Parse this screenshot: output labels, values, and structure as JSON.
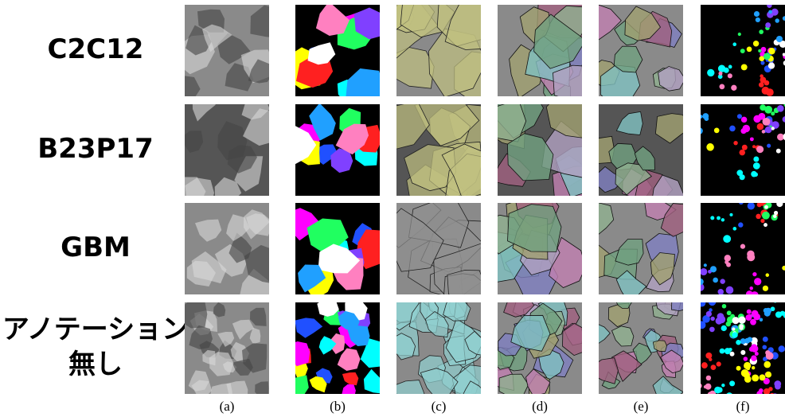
{
  "rows": [
    {
      "label": [
        "C2C12"
      ]
    },
    {
      "label": [
        "B23P17"
      ]
    },
    {
      "label": [
        "GBM"
      ]
    },
    {
      "label": [
        "アノテーション",
        "無し"
      ]
    }
  ],
  "columns": [
    "(a)",
    "(b)",
    "(c)",
    "(d)",
    "(e)",
    "(f)"
  ]
}
